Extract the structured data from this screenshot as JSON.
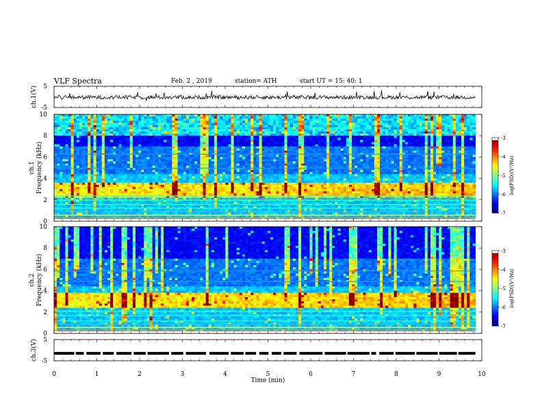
{
  "header": {
    "title": "VLF Spectra",
    "date": "Feb. 2 , 2019",
    "station": "station= ATH",
    "start": "start UT = 15: 40: 1"
  },
  "chart_data": [
    {
      "type": "line",
      "name": "ch1-waveform",
      "ylabel": "ch.1(V)",
      "yticks": [
        "5",
        "-5"
      ],
      "ylim": [
        -5,
        5
      ],
      "xlim": [
        0,
        10
      ],
      "data_end_min": 9.85,
      "baseline_v": -0.2,
      "noise_amplitude_v": 0.9
    },
    {
      "type": "heatmap",
      "name": "ch1-spectrogram",
      "ylabel": "ch.1 Frequency (kHz)",
      "yticks": [
        "0",
        "2",
        "4",
        "6",
        "8",
        "10"
      ],
      "ylim": [
        0,
        10
      ],
      "xlim": [
        0,
        10
      ],
      "data_end_min": 9.85,
      "colorbar": {
        "label": "log(PSD)(V²/Hz)",
        "ticks": [
          "-3",
          "-4",
          "-5",
          "-6",
          "-7"
        ],
        "range": [
          -7,
          -3
        ]
      },
      "features": {
        "enhanced_band_khz": [
          2.2,
          3.6
        ],
        "narrowband_lines_khz": [
          0.35,
          0.6,
          0.9,
          1.25,
          1.6,
          2.0,
          2.4,
          5.0,
          6.3
        ],
        "sferic_columns_reach_khz": 10
      }
    },
    {
      "type": "heatmap",
      "name": "ch2-spectrogram",
      "ylabel": "ch.2 Frequency (kHz)",
      "yticks": [
        "0",
        "2",
        "4",
        "6",
        "8",
        "10"
      ],
      "ylim": [
        0,
        10
      ],
      "xlim": [
        0,
        10
      ],
      "data_end_min": 9.85,
      "colorbar": {
        "label": "log(PSD)(V²/Hz)",
        "ticks": [
          "-3",
          "-4",
          "-5",
          "-6",
          "-7"
        ],
        "range": [
          -7,
          -3
        ]
      },
      "features": {
        "enhanced_band_khz": [
          2.4,
          3.8
        ],
        "narrowband_lines_khz": [
          0.35,
          0.6,
          0.9,
          1.2,
          1.7,
          2.1,
          4.9,
          5.9
        ],
        "sferic_columns_reach_khz": 10
      }
    },
    {
      "type": "line",
      "name": "ch3-waveform",
      "ylabel": "ch.3(V)",
      "yticks": [
        "5",
        "-5"
      ],
      "ylim": [
        -5,
        5
      ],
      "xlim": [
        0,
        10
      ],
      "data_end_min": 9.85,
      "level_v": -1.5,
      "style": "dashed"
    }
  ],
  "xaxis": {
    "label": "Time (min)",
    "ticks": [
      "0",
      "1",
      "2",
      "3",
      "4",
      "5",
      "6",
      "7",
      "8",
      "9",
      "10"
    ]
  },
  "colors": {
    "waveform": "#000000",
    "background_low": "#000000"
  }
}
